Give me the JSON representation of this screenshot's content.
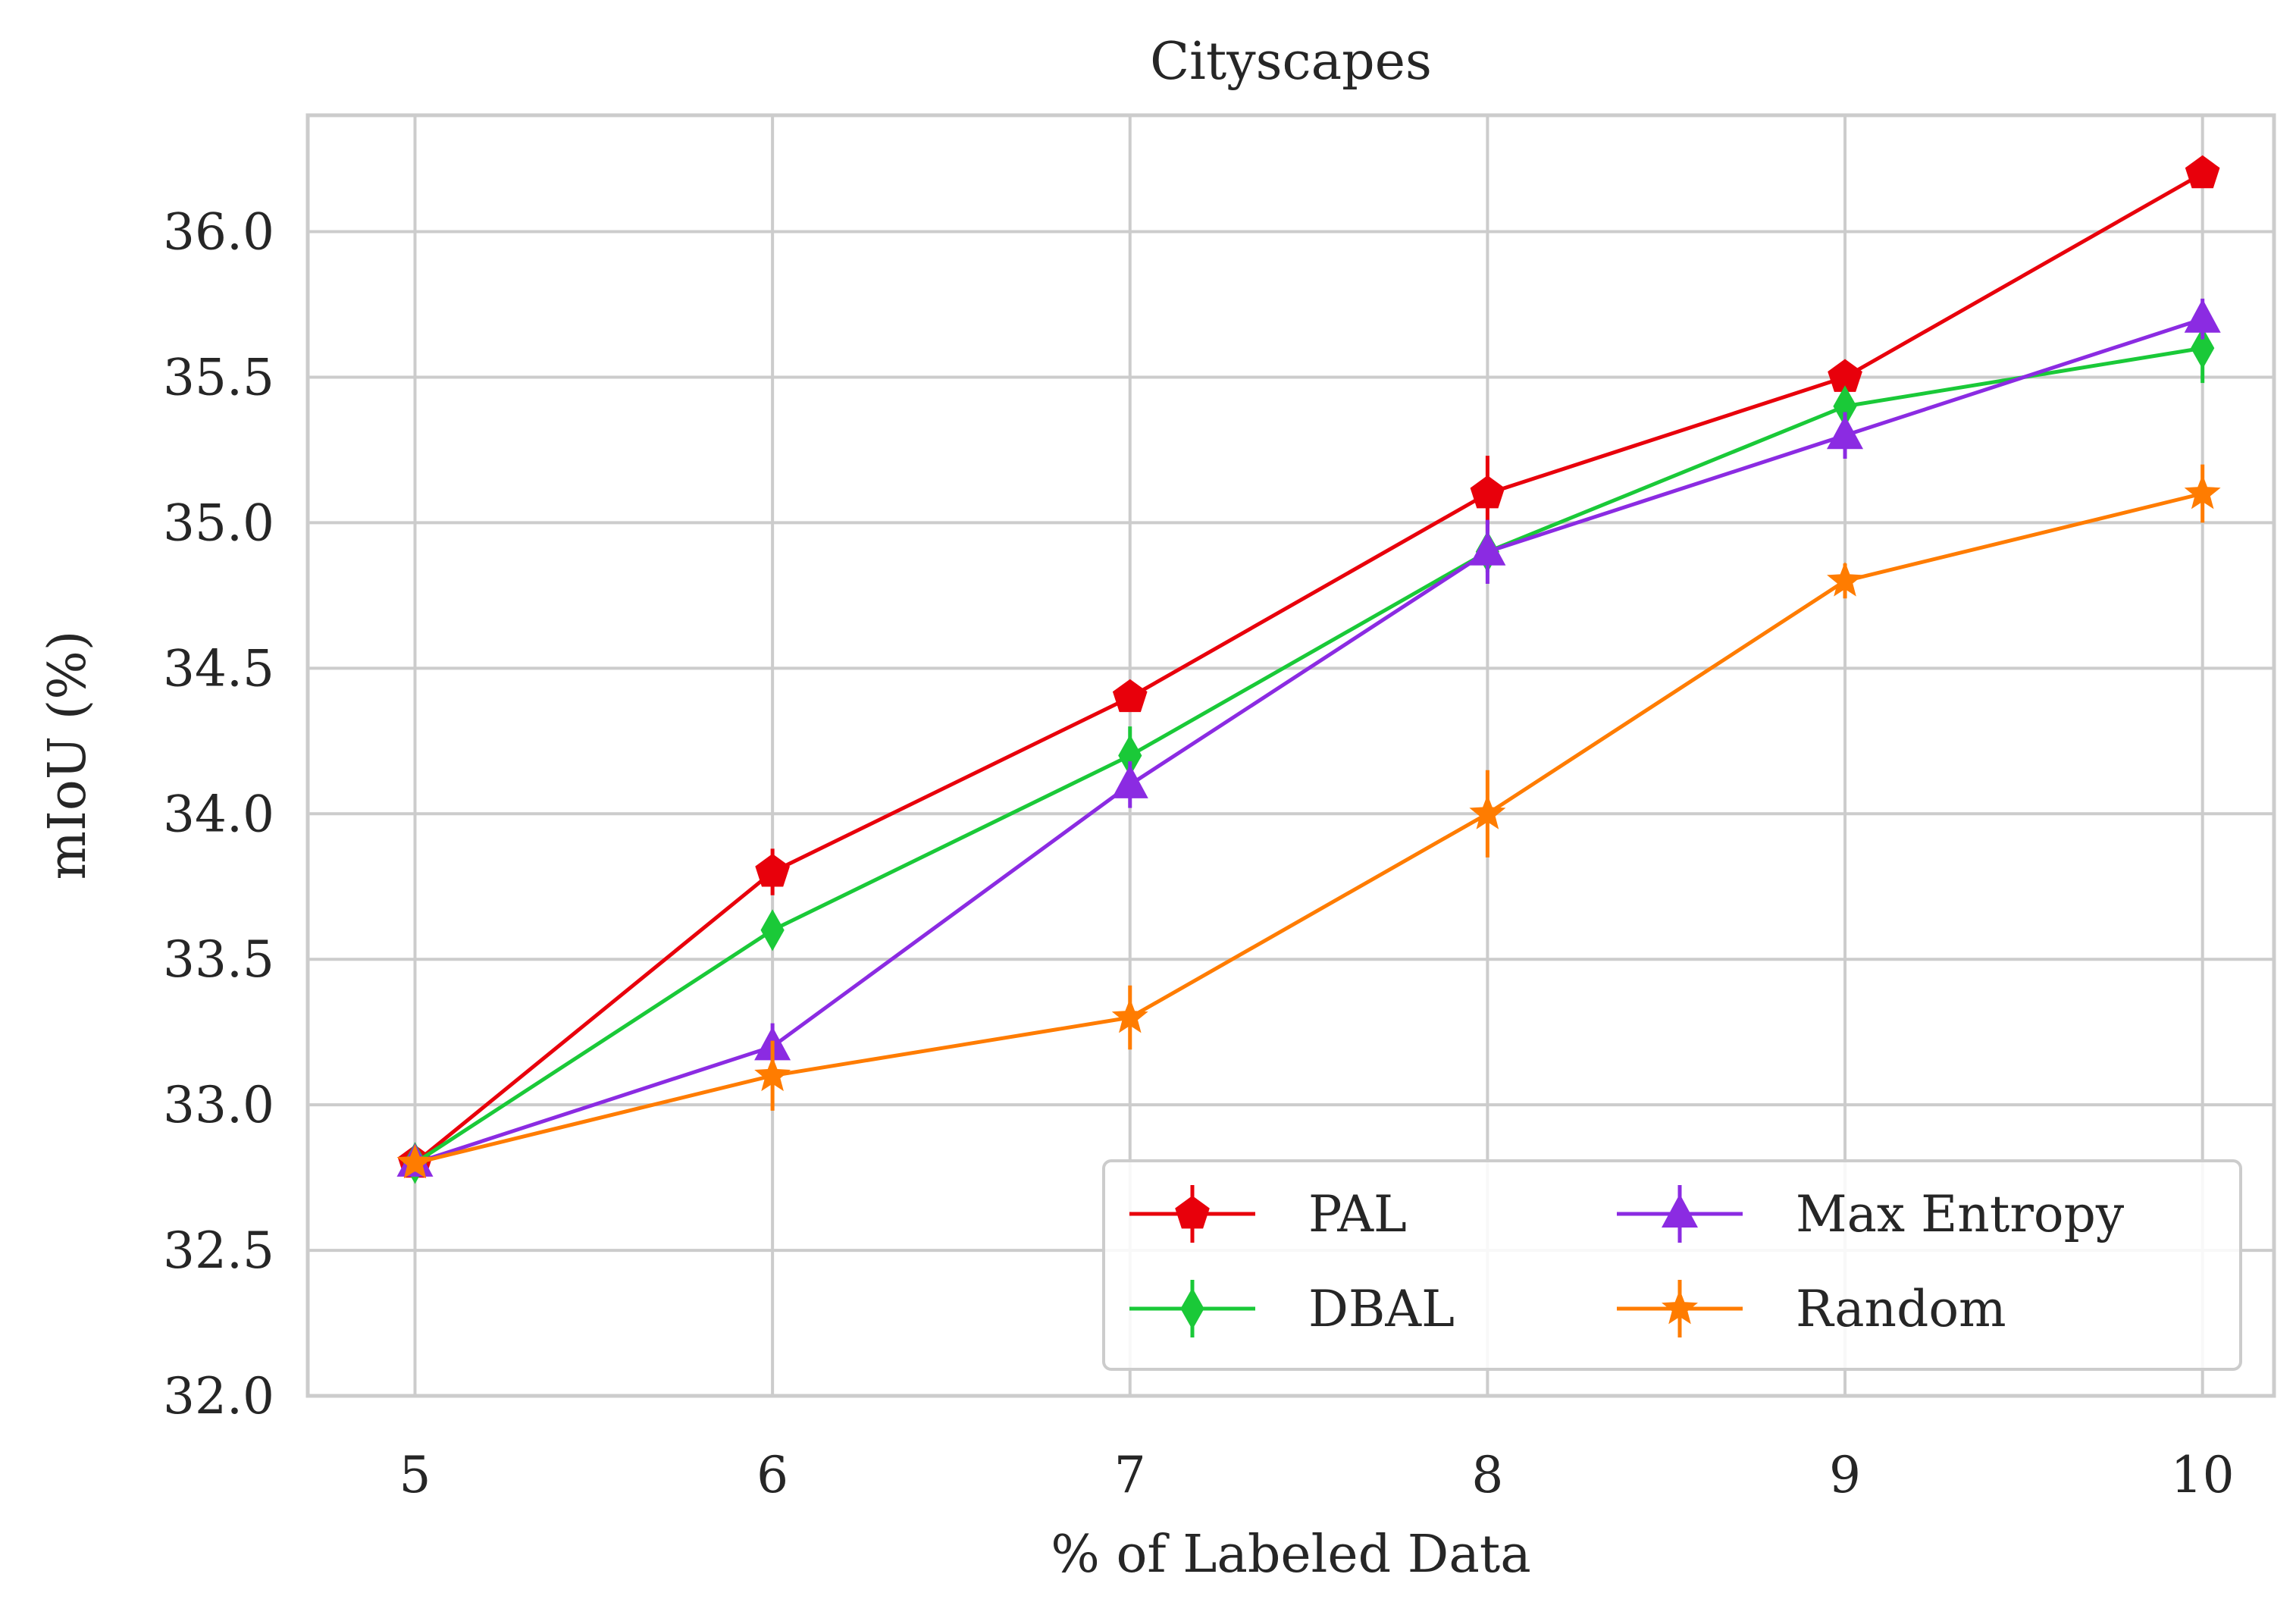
{
  "chart_data": {
    "type": "line",
    "title": "Cityscapes",
    "xlabel": "% of Labeled Data",
    "ylabel": "mIoU (%)",
    "x": [
      5,
      6,
      7,
      8,
      9,
      10
    ],
    "x_ticks": [
      "5",
      "6",
      "7",
      "8",
      "9",
      "10"
    ],
    "xlim": [
      4.7,
      10.2
    ],
    "ylim": [
      32.0,
      36.4
    ],
    "y_ticks": [
      32.0,
      32.5,
      33.0,
      33.5,
      34.0,
      34.5,
      35.0,
      35.5,
      36.0
    ],
    "y_tick_labels": [
      "32.0",
      "32.5",
      "33.0",
      "33.5",
      "34.0",
      "34.5",
      "35.0",
      "35.5",
      "36.0"
    ],
    "grid": true,
    "legend_position": "bottom-right",
    "legend_columns": 2,
    "series": [
      {
        "name": "PAL",
        "color": "#e8000b",
        "marker": "pentagon",
        "values": [
          32.8,
          33.8,
          34.4,
          35.1,
          35.5,
          36.2
        ],
        "errors": [
          0.03,
          0.08,
          0.04,
          0.13,
          0.05,
          0.03
        ]
      },
      {
        "name": "DBAL",
        "color": "#1ac938",
        "marker": "thin-diamond",
        "values": [
          32.8,
          33.6,
          34.2,
          34.9,
          35.4,
          35.6
        ],
        "errors": [
          0.04,
          0.05,
          0.1,
          0.07,
          0.05,
          0.12
        ]
      },
      {
        "name": "Max Entropy",
        "color": "#8b2be2",
        "marker": "triangle-up",
        "values": [
          32.8,
          33.2,
          34.1,
          34.9,
          35.3,
          35.7
        ],
        "errors": [
          0.03,
          0.08,
          0.08,
          0.11,
          0.08,
          0.07
        ]
      },
      {
        "name": "Random",
        "color": "#ff7c00",
        "marker": "star",
        "values": [
          32.8,
          33.1,
          33.3,
          34.0,
          34.8,
          35.1
        ],
        "errors": [
          0.03,
          0.12,
          0.11,
          0.15,
          0.06,
          0.1
        ]
      }
    ]
  }
}
